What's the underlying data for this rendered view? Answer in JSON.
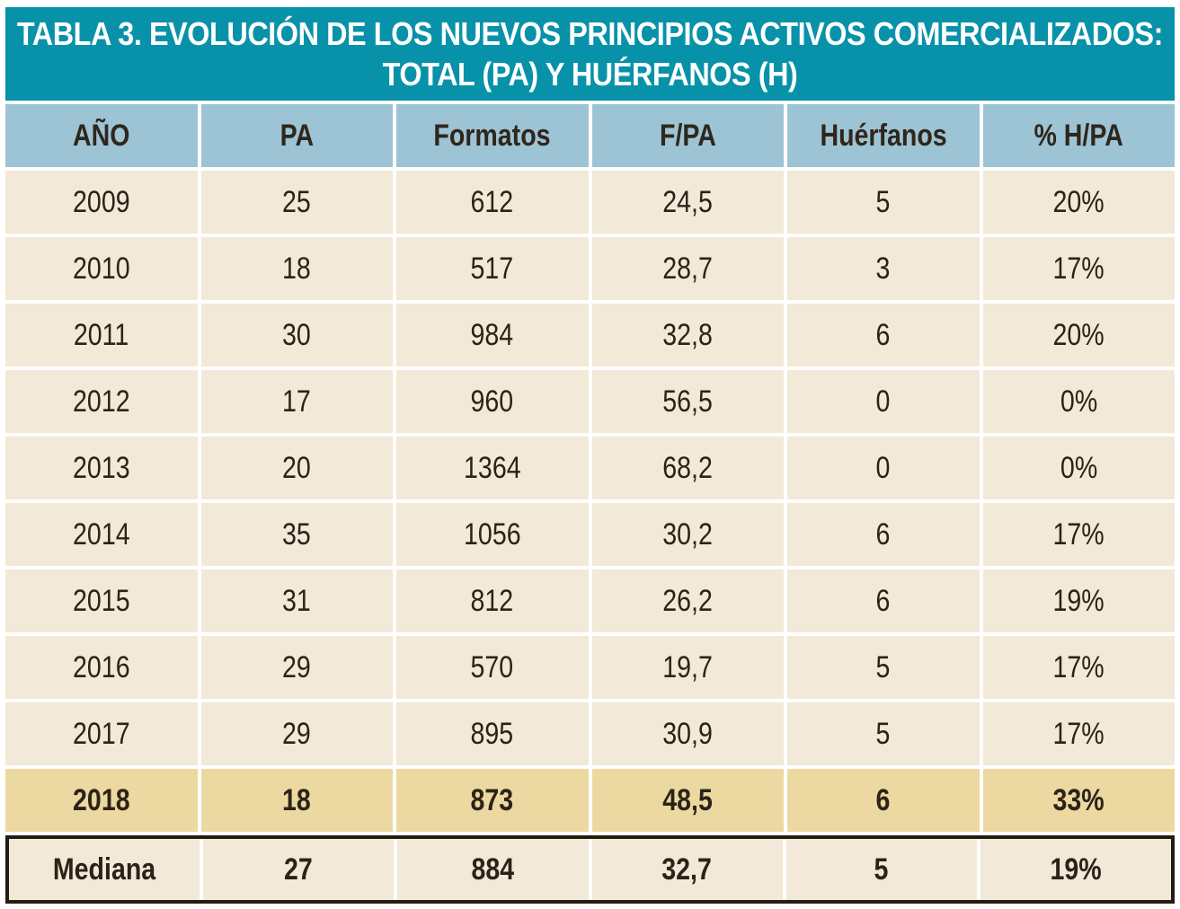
{
  "title": {
    "line1": "TABLA 3. EVOLUCIÓN DE LOS NUEVOS PRINCIPIOS ACTIVOS COMERCIALIZADOS:",
    "line2": "TOTAL (PA) Y HUÉRFANOS (H)"
  },
  "table": {
    "columns": [
      "AÑO",
      "PA",
      "Formatos",
      "F/PA",
      "Huérfanos",
      "% H/PA"
    ],
    "rows": [
      {
        "style": "normal",
        "cells": [
          "2009",
          "25",
          "612",
          "24,5",
          "5",
          "20%"
        ]
      },
      {
        "style": "normal",
        "cells": [
          "2010",
          "18",
          "517",
          "28,7",
          "3",
          "17%"
        ]
      },
      {
        "style": "normal",
        "cells": [
          "2011",
          "30",
          "984",
          "32,8",
          "6",
          "20%"
        ]
      },
      {
        "style": "normal",
        "cells": [
          "2012",
          "17",
          "960",
          "56,5",
          "0",
          "0%"
        ]
      },
      {
        "style": "normal",
        "cells": [
          "2013",
          "20",
          "1364",
          "68,2",
          "0",
          "0%"
        ]
      },
      {
        "style": "normal",
        "cells": [
          "2014",
          "35",
          "1056",
          "30,2",
          "6",
          "17%"
        ]
      },
      {
        "style": "normal",
        "cells": [
          "2015",
          "31",
          "812",
          "26,2",
          "6",
          "19%"
        ]
      },
      {
        "style": "normal",
        "cells": [
          "2016",
          "29",
          "570",
          "19,7",
          "5",
          "17%"
        ]
      },
      {
        "style": "normal",
        "cells": [
          "2017",
          "29",
          "895",
          "30,9",
          "5",
          "17%"
        ]
      },
      {
        "style": "highlight",
        "cells": [
          "2018",
          "18",
          "873",
          "48,5",
          "6",
          "33%"
        ]
      },
      {
        "style": "total",
        "cells": [
          "Mediana",
          "27",
          "884",
          "32,7",
          "5",
          "19%"
        ]
      }
    ]
  },
  "colors": {
    "title_band": "#0892a9",
    "title_text": "#ffffff",
    "header_blue": "#9cc4d5",
    "row_cream": "#f2e9d8",
    "highlight_tan": "#ecd9a1",
    "total_border": "#251c11",
    "text_dark": "#2c2318",
    "gap_white": "#ffffff"
  },
  "chart_data": {
    "type": "table",
    "title": "TABLA 3. EVOLUCIÓN DE LOS NUEVOS PRINCIPIOS ACTIVOS COMERCIALIZADOS: TOTAL (PA) Y HUÉRFANOS (H)",
    "columns": [
      "AÑO",
      "PA",
      "Formatos",
      "F/PA",
      "Huérfanos",
      "% H/PA"
    ],
    "rows": [
      [
        "2009",
        "25",
        "612",
        "24,5",
        "5",
        "20%"
      ],
      [
        "2010",
        "18",
        "517",
        "28,7",
        "3",
        "17%"
      ],
      [
        "2011",
        "30",
        "984",
        "32,8",
        "6",
        "20%"
      ],
      [
        "2012",
        "17",
        "960",
        "56,5",
        "0",
        "0%"
      ],
      [
        "2013",
        "20",
        "1364",
        "68,2",
        "0",
        "0%"
      ],
      [
        "2014",
        "35",
        "1056",
        "30,2",
        "6",
        "17%"
      ],
      [
        "2015",
        "31",
        "812",
        "26,2",
        "6",
        "19%"
      ],
      [
        "2016",
        "29",
        "570",
        "19,7",
        "5",
        "17%"
      ],
      [
        "2017",
        "29",
        "895",
        "30,9",
        "5",
        "17%"
      ],
      [
        "2018",
        "18",
        "873",
        "48,5",
        "6",
        "33%"
      ],
      [
        "Mediana",
        "27",
        "884",
        "32,7",
        "5",
        "19%"
      ]
    ],
    "notes": {
      "highlighted_row": "2018",
      "summary_row": "Mediana",
      "decimal_separator": "comma"
    }
  }
}
